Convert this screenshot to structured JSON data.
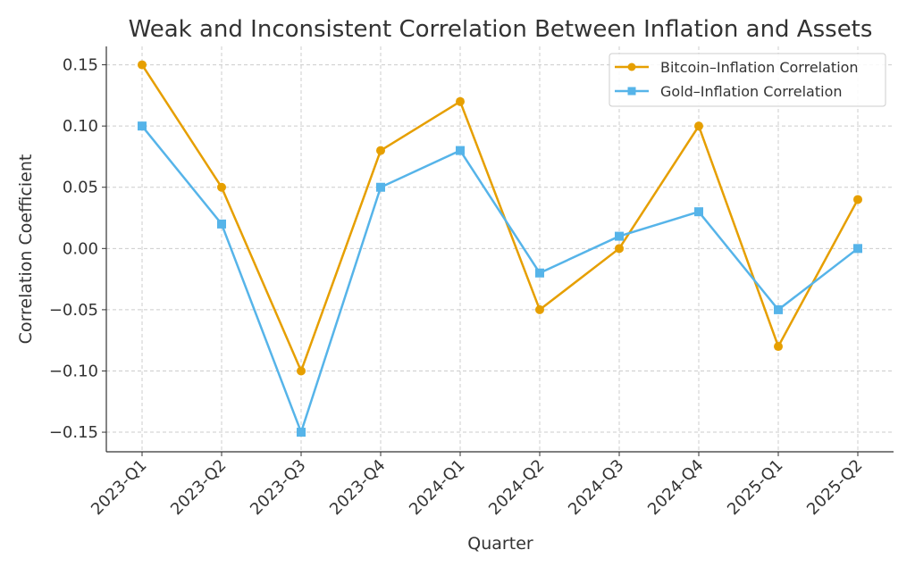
{
  "chart_data": {
    "type": "line",
    "title": "Weak and Inconsistent Correlation Between Inflation and Assets",
    "xlabel": "Quarter",
    "ylabel": "Correlation Coefficient",
    "categories": [
      "2023-Q1",
      "2023-Q2",
      "2023-Q3",
      "2023-Q4",
      "2024-Q1",
      "2024-Q2",
      "2024-Q3",
      "2024-Q4",
      "2025-Q1",
      "2025-Q2"
    ],
    "yticks": [
      -0.15,
      -0.1,
      -0.05,
      0.0,
      0.05,
      0.1,
      0.15
    ],
    "ytick_labels": [
      "−0.15",
      "−0.10",
      "−0.05",
      "0.00",
      "0.05",
      "0.10",
      "0.15"
    ],
    "ylim": [
      -0.166,
      0.165
    ],
    "grid": true,
    "legend_position": "top-right",
    "series": [
      {
        "name": "Bitcoin–Inflation Correlation",
        "color": "#E69F00",
        "marker": "circle",
        "values": [
          0.15,
          0.05,
          -0.1,
          0.08,
          0.12,
          -0.05,
          0.0,
          0.1,
          -0.08,
          0.04
        ]
      },
      {
        "name": "Gold–Inflation Correlation",
        "color": "#56B4E9",
        "marker": "square",
        "values": [
          0.1,
          0.02,
          -0.15,
          0.05,
          0.08,
          -0.02,
          0.01,
          0.03,
          -0.05,
          0.0
        ]
      }
    ]
  }
}
